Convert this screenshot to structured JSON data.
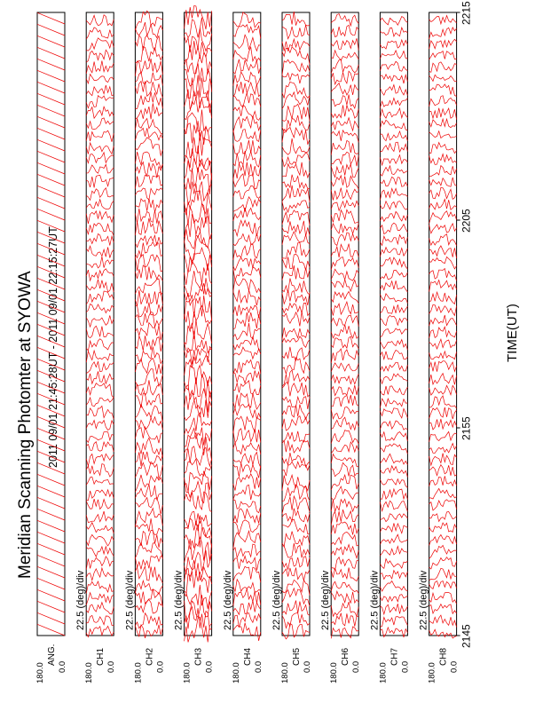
{
  "page": {
    "title": "Meridian Scanning Photomter at SYOWA",
    "time_range": "2011 09/01 21:45:28UT - 2011 09/01 22:15:27UT",
    "x_axis_label": "TIME(UT)"
  },
  "chart_data": {
    "type": "line",
    "title": "Meridian Scanning Photomter at SYOWA",
    "subtitle": "2011 09/01 21:45:28UT - 2011 09/01 22:15:27UT",
    "xlabel": "TIME(UT)",
    "x_ticks": [
      "2145",
      "2155",
      "2205",
      "2215"
    ],
    "x_tick_minutes": [
      0,
      10,
      20,
      30
    ],
    "xlim_minutes": [
      0,
      30
    ],
    "ylim": [
      0.0,
      180.0
    ],
    "y_tick_labels": [
      "180.0",
      "0.0"
    ],
    "scale_label": "22.5 (deg)/div",
    "trace_color": "#ee0000",
    "panels": [
      {
        "name": "ANG",
        "label": "ANG.",
        "scale_label": "",
        "traces": 54,
        "amplitude": 0.0
      },
      {
        "name": "CH1",
        "label": "CH1",
        "scale_label": "22.5 (deg)/div",
        "traces": 54,
        "amplitude": 0.55
      },
      {
        "name": "CH2",
        "label": "CH2",
        "scale_label": "22.5 (deg)/div",
        "traces": 54,
        "amplitude": 0.75
      },
      {
        "name": "CH3",
        "label": "CH3",
        "scale_label": "22.5 (deg)/div",
        "traces": 54,
        "amplitude": 1.1
      },
      {
        "name": "CH4",
        "label": "CH4",
        "scale_label": "22.5 (deg)/div",
        "traces": 54,
        "amplitude": 0.7
      },
      {
        "name": "CH5",
        "label": "CH5",
        "scale_label": "22.5 (deg)/div",
        "traces": 54,
        "amplitude": 0.7
      },
      {
        "name": "CH6",
        "label": "CH6",
        "scale_label": "22.5 (deg)/div",
        "traces": 54,
        "amplitude": 0.6
      },
      {
        "name": "CH7",
        "label": "CH7",
        "scale_label": "22.5 (deg)/div",
        "traces": 54,
        "amplitude": 0.45
      },
      {
        "name": "CH8",
        "label": "CH8",
        "scale_label": "22.5 (deg)/div",
        "traces": 54,
        "amplitude": 0.5
      }
    ]
  }
}
